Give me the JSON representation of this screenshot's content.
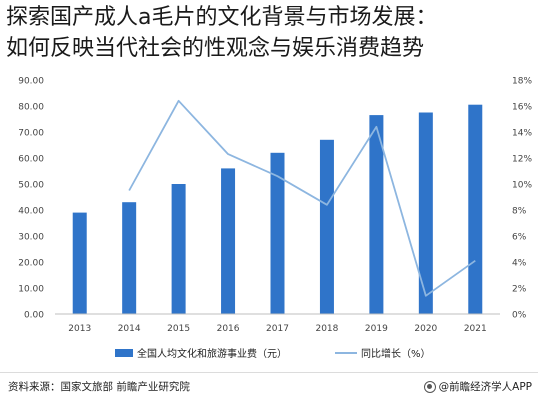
{
  "title_lines": [
    "探索国产成人a毛片的文化背景与市场发展：",
    "如何反映当代社会的性观念与娱乐消费趋势"
  ],
  "chart_data": {
    "type": "bar",
    "categories": [
      "2013",
      "2014",
      "2015",
      "2016",
      "2017",
      "2018",
      "2019",
      "2020",
      "2021"
    ],
    "series": [
      {
        "name": "全国人均文化和旅游事业费（元）",
        "type": "bar",
        "axis": "left",
        "values": [
          39.0,
          43.0,
          50.0,
          56.0,
          62.0,
          67.0,
          76.5,
          77.5,
          80.5
        ]
      },
      {
        "name": "同比增长（%）",
        "type": "line",
        "axis": "right",
        "values": [
          null,
          9.5,
          16.4,
          12.3,
          10.6,
          8.4,
          14.4,
          1.4,
          4.1
        ]
      }
    ],
    "y_left": {
      "min": 0,
      "max": 90,
      "step": 10,
      "tick_labels": [
        "0.00",
        "10.00",
        "20.00",
        "30.00",
        "40.00",
        "50.00",
        "60.00",
        "70.00",
        "80.00",
        "90.00"
      ]
    },
    "y_right": {
      "min": 0,
      "max": 18,
      "step": 2,
      "tick_labels": [
        "0%",
        "2%",
        "4%",
        "6%",
        "8%",
        "10%",
        "12%",
        "14%",
        "16%",
        "18%"
      ]
    },
    "legend_position": "bottom",
    "grid": false,
    "colors": {
      "bar": "#2f74c9",
      "line": "#8db6e0"
    }
  },
  "footer": {
    "source": "资料来源：国家文旅部 前瞻产业研究院",
    "brand": "@前瞻经济学人APP"
  }
}
